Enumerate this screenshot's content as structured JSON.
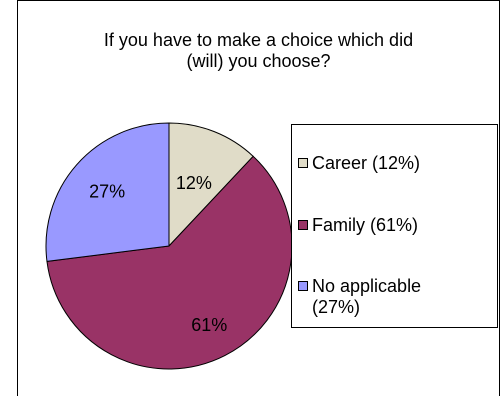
{
  "chart_data": {
    "type": "pie",
    "title": [
      "If  you have to make a choice which did",
      "(will) you choose?"
    ],
    "slices": [
      {
        "label": "Career (12%)",
        "value": 12,
        "data_label": "12%",
        "color": "#E0DCC8"
      },
      {
        "label": "Family (61%)",
        "value": 61,
        "data_label": "61%",
        "color": "#993366"
      },
      {
        "label": "No applicable (27%)",
        "value": 27,
        "data_label": "27%",
        "color": "#9999FF"
      }
    ],
    "legend_position": "right"
  },
  "legend": {
    "items": [
      {
        "line1": "Career (12%)",
        "line2": ""
      },
      {
        "line1": "Family (61%)",
        "line2": ""
      },
      {
        "line1": "No applicable",
        "line2": "(27%)"
      }
    ]
  }
}
